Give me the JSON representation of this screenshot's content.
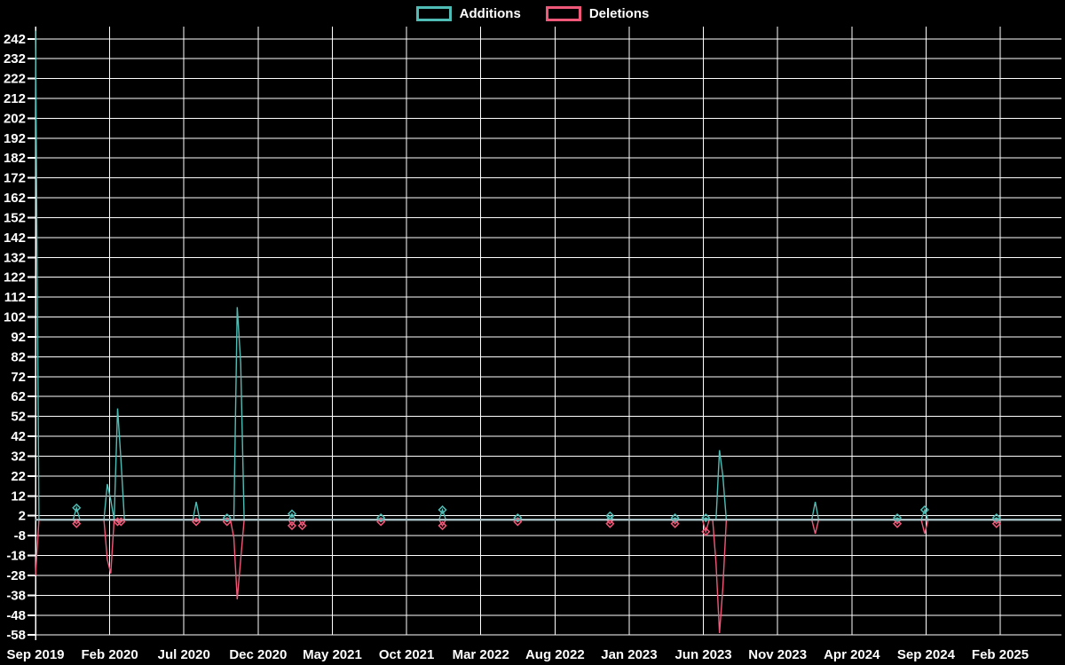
{
  "page": {
    "background_color": "#000000",
    "text_color": "#ffffff",
    "grid_color": "#ffffff",
    "zero_line_color": "#a7bfc2"
  },
  "chart_data": {
    "type": "line",
    "title": "",
    "legend_position": "top-center",
    "grid": true,
    "x_axis": {
      "tick_labels": [
        "Sep 2019",
        "Feb 2020",
        "Jul 2020",
        "Dec 2020",
        "May 2021",
        "Oct 2021",
        "Mar 2022",
        "Aug 2022",
        "Jan 2023",
        "Jun 2023",
        "Nov 2023",
        "Apr 2024",
        "Sep 2024",
        "Feb 2025"
      ],
      "weeks_between_ticks": 21.7,
      "total_weeks": 300
    },
    "y_axis": {
      "tick_labels": [
        242,
        232,
        222,
        212,
        202,
        192,
        182,
        172,
        162,
        152,
        142,
        132,
        122,
        112,
        102,
        92,
        82,
        72,
        62,
        52,
        42,
        32,
        22,
        12,
        2,
        -8,
        -18,
        -28,
        -38,
        -48,
        -58
      ],
      "min": -58,
      "max": 248,
      "tick_step": 10
    },
    "series": [
      {
        "name": "Additions",
        "color": "#4fbdb5",
        "default_value": 0,
        "spikes": [
          [
            0,
            246
          ],
          [
            12,
            6
          ],
          [
            21,
            18
          ],
          [
            22,
            10
          ],
          [
            24,
            56
          ],
          [
            25,
            30
          ],
          [
            47,
            9
          ],
          [
            56,
            1
          ],
          [
            59,
            107
          ],
          [
            60,
            79
          ],
          [
            75,
            3
          ],
          [
            101,
            1
          ],
          [
            119,
            5
          ],
          [
            141,
            1
          ],
          [
            168,
            2
          ],
          [
            187,
            1
          ],
          [
            196,
            1
          ],
          [
            200,
            35
          ],
          [
            201,
            22
          ],
          [
            228,
            9
          ],
          [
            252,
            1
          ],
          [
            260,
            5
          ],
          [
            281,
            1
          ]
        ]
      },
      {
        "name": "Deletions",
        "color": "#ef5878",
        "default_value": 0,
        "spikes": [
          [
            0,
            -28
          ],
          [
            12,
            -2
          ],
          [
            21,
            -20
          ],
          [
            22,
            -27
          ],
          [
            24,
            -1
          ],
          [
            25,
            -1
          ],
          [
            47,
            -1
          ],
          [
            56,
            -1
          ],
          [
            58,
            -9
          ],
          [
            59,
            -40
          ],
          [
            60,
            -20
          ],
          [
            75,
            -3
          ],
          [
            78,
            -3
          ],
          [
            101,
            -1
          ],
          [
            119,
            -3
          ],
          [
            141,
            -1
          ],
          [
            168,
            -2
          ],
          [
            187,
            -2
          ],
          [
            196,
            -6
          ],
          [
            199,
            -22
          ],
          [
            200,
            -57
          ],
          [
            201,
            -34
          ],
          [
            228,
            -7
          ],
          [
            252,
            -2
          ],
          [
            260,
            -7
          ],
          [
            281,
            -2
          ]
        ]
      }
    ]
  }
}
